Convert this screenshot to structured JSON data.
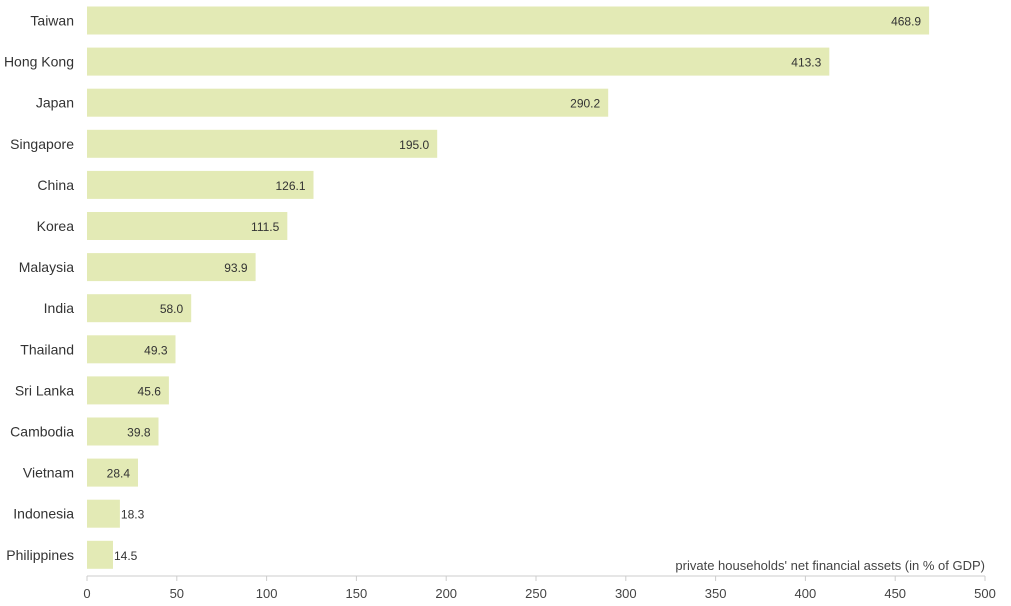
{
  "chart_data": {
    "type": "bar",
    "orientation": "horizontal",
    "categories": [
      "Taiwan",
      "Hong Kong",
      "Japan",
      "Singapore",
      "China",
      "Korea",
      "Malaysia",
      "India",
      "Thailand",
      "Sri Lanka",
      "Cambodia",
      "Vietnam",
      "Indonesia",
      "Philippines"
    ],
    "values": [
      468.9,
      413.3,
      290.2,
      195.0,
      126.1,
      111.5,
      93.9,
      58.0,
      49.3,
      45.6,
      39.8,
      28.4,
      18.3,
      14.5
    ],
    "value_labels": [
      "468.9",
      "413.3",
      "290.2",
      "195.0",
      "126.1",
      "111.5",
      "93.9",
      "58.0",
      "49.3",
      "45.6",
      "39.8",
      "28.4",
      "18.3",
      "14.5"
    ],
    "xlabel": "private households' net financial assets (in % of GDP)",
    "xlim": [
      0,
      500
    ],
    "xticks": [
      "0",
      "50",
      "100",
      "150",
      "200",
      "250",
      "300",
      "350",
      "400",
      "450",
      "500"
    ],
    "grid": false,
    "bar_color": "#e3eab5",
    "axis_color": "#cccccc"
  }
}
